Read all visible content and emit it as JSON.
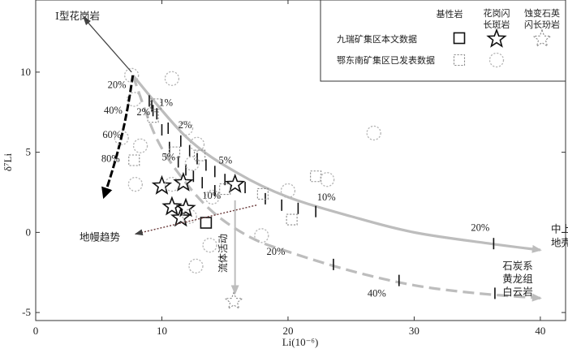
{
  "chart_data": {
    "type": "scatter",
    "xlabel": "Li(10⁻⁶)",
    "ylabel": "δ⁷Li",
    "xlim": [
      0,
      42
    ],
    "ylim": [
      -5.5,
      14.5
    ],
    "x_ticks": [
      0,
      10,
      20,
      30,
      40
    ],
    "y_ticks": [
      -5,
      0,
      5,
      10
    ],
    "legend": {
      "col_basic": "基性岩",
      "col_porphyry": [
        "花岗闪",
        "长斑岩"
      ],
      "col_altered": [
        "蚀变石英",
        "闪长玢岩"
      ],
      "row_this_study": "九瑞矿集区本文数据",
      "row_published": "鄂东南矿集区已发表数据"
    },
    "series": [
      {
        "name": "九瑞矿集区本文数据 基性岩",
        "marker": "square",
        "style": "solid",
        "points": [
          [
            13.5,
            0.6
          ]
        ]
      },
      {
        "name": "九瑞矿集区本文数据 花岗闪长斑岩",
        "marker": "star",
        "style": "solid",
        "points": [
          [
            10.0,
            2.9
          ],
          [
            11.7,
            3.1
          ],
          [
            15.8,
            3.0
          ],
          [
            10.8,
            1.6
          ],
          [
            11.9,
            1.5
          ],
          [
            11.5,
            0.9
          ]
        ]
      },
      {
        "name": "九瑞矿集区本文数据 蚀变石英闪长玢岩",
        "marker": "star",
        "style": "dashed",
        "points": [
          [
            15.7,
            -4.3
          ]
        ]
      },
      {
        "name": "鄂东南矿集区已发表数据 基性岩",
        "marker": "square",
        "style": "dashed",
        "points": [
          [
            7.8,
            4.5
          ],
          [
            9.3,
            7.2
          ],
          [
            11.0,
            5.0
          ],
          [
            13.0,
            4.8
          ],
          [
            15.0,
            2.7
          ],
          [
            18.0,
            2.4
          ],
          [
            20.3,
            0.8
          ],
          [
            22.2,
            3.5
          ],
          [
            9.5,
            8.0
          ]
        ]
      },
      {
        "name": "鄂东南矿集区已发表数据 花岗闪长斑岩",
        "marker": "circle",
        "style": "dashed",
        "points": [
          [
            7.6,
            9.8
          ],
          [
            7.8,
            8.3
          ],
          [
            10.8,
            9.6
          ],
          [
            6.8,
            5.9
          ],
          [
            8.3,
            5.4
          ],
          [
            7.9,
            3.0
          ],
          [
            10.8,
            3.0
          ],
          [
            12.8,
            5.5
          ],
          [
            12.4,
            4.3
          ],
          [
            12.2,
            1.0
          ],
          [
            13.8,
            -0.8
          ],
          [
            12.7,
            -2.1
          ],
          [
            14.0,
            2.2
          ],
          [
            17.9,
            -0.2
          ],
          [
            20.0,
            2.6
          ],
          [
            23.1,
            3.3
          ],
          [
            26.8,
            6.2
          ],
          [
            11.9,
            6.5
          ]
        ]
      }
    ],
    "curves": [
      {
        "name": "upper",
        "style": "solid",
        "points": [
          [
            7.7,
            9.8
          ],
          [
            12,
            5.9
          ],
          [
            16,
            3.7
          ],
          [
            20,
            2.2
          ],
          [
            25,
            1.0
          ],
          [
            30,
            0.0
          ],
          [
            36,
            -0.7
          ],
          [
            40,
            -1.1
          ]
        ],
        "end_label": [
          "中上",
          "地壳"
        ],
        "ticks": [
          [
            9.2,
            7.9
          ],
          [
            9.6,
            7.4
          ],
          [
            10.5,
            6.5
          ],
          [
            11.5,
            5.7
          ],
          [
            12.2,
            5.1
          ],
          [
            12.8,
            4.6
          ],
          [
            13.5,
            4.2
          ],
          [
            14.2,
            3.8
          ],
          [
            15.0,
            3.3
          ],
          [
            16.6,
            2.8
          ],
          [
            18.2,
            2.1
          ],
          [
            19.5,
            1.7
          ],
          [
            20.8,
            1.5
          ],
          [
            22.2,
            1.3
          ],
          [
            36.3,
            -0.7
          ]
        ],
        "pct_labels": [
          [
            "1%",
            9.8,
            7.9
          ],
          [
            "2%",
            11.3,
            6.5
          ],
          [
            "5%",
            14.5,
            4.3
          ],
          [
            "10%",
            22.3,
            2.0
          ],
          [
            "20%",
            34.5,
            0.1
          ]
        ]
      },
      {
        "name": "lower",
        "style": "dashed",
        "points": [
          [
            7.7,
            9.8
          ],
          [
            9.5,
            6.0
          ],
          [
            11.5,
            3.5
          ],
          [
            14,
            1.3
          ],
          [
            17,
            -0.3
          ],
          [
            20,
            -1.2
          ],
          [
            25,
            -2.4
          ],
          [
            30,
            -3.3
          ],
          [
            35,
            -3.8
          ],
          [
            40,
            -4.1
          ]
        ],
        "end_label": [
          "石炭系",
          "黄龙组",
          "白云岩"
        ],
        "ticks": [
          [
            9.0,
            8.2
          ],
          [
            9.3,
            7.6
          ],
          [
            10.0,
            6.4
          ],
          [
            10.6,
            5.3
          ],
          [
            11.3,
            4.4
          ],
          [
            11.9,
            3.9
          ],
          [
            12.5,
            3.5
          ],
          [
            13.2,
            3.1
          ],
          [
            14.2,
            2.6
          ],
          [
            23.6,
            -2.0
          ],
          [
            28.8,
            -3.0
          ],
          [
            36.4,
            -3.8
          ]
        ],
        "pct_labels": [
          [
            "2%",
            8.0,
            7.3
          ],
          [
            "5%",
            10.0,
            4.5
          ],
          [
            "10%",
            13.2,
            2.1
          ],
          [
            "20%",
            18.3,
            -1.4
          ],
          [
            "40%",
            26.3,
            -4.0
          ]
        ]
      },
      {
        "name": "mixing",
        "style": "black",
        "pct_labels": [
          [
            "20%",
            5.7,
            9.0
          ],
          [
            "40%",
            5.4,
            7.4
          ],
          [
            "60%",
            5.3,
            5.9
          ],
          [
            "80%",
            5.2,
            4.4
          ]
        ]
      }
    ],
    "annotations": {
      "granite": "I型花岗岩",
      "mantle": "地幔趋势",
      "fluid": "流体活动"
    }
  }
}
